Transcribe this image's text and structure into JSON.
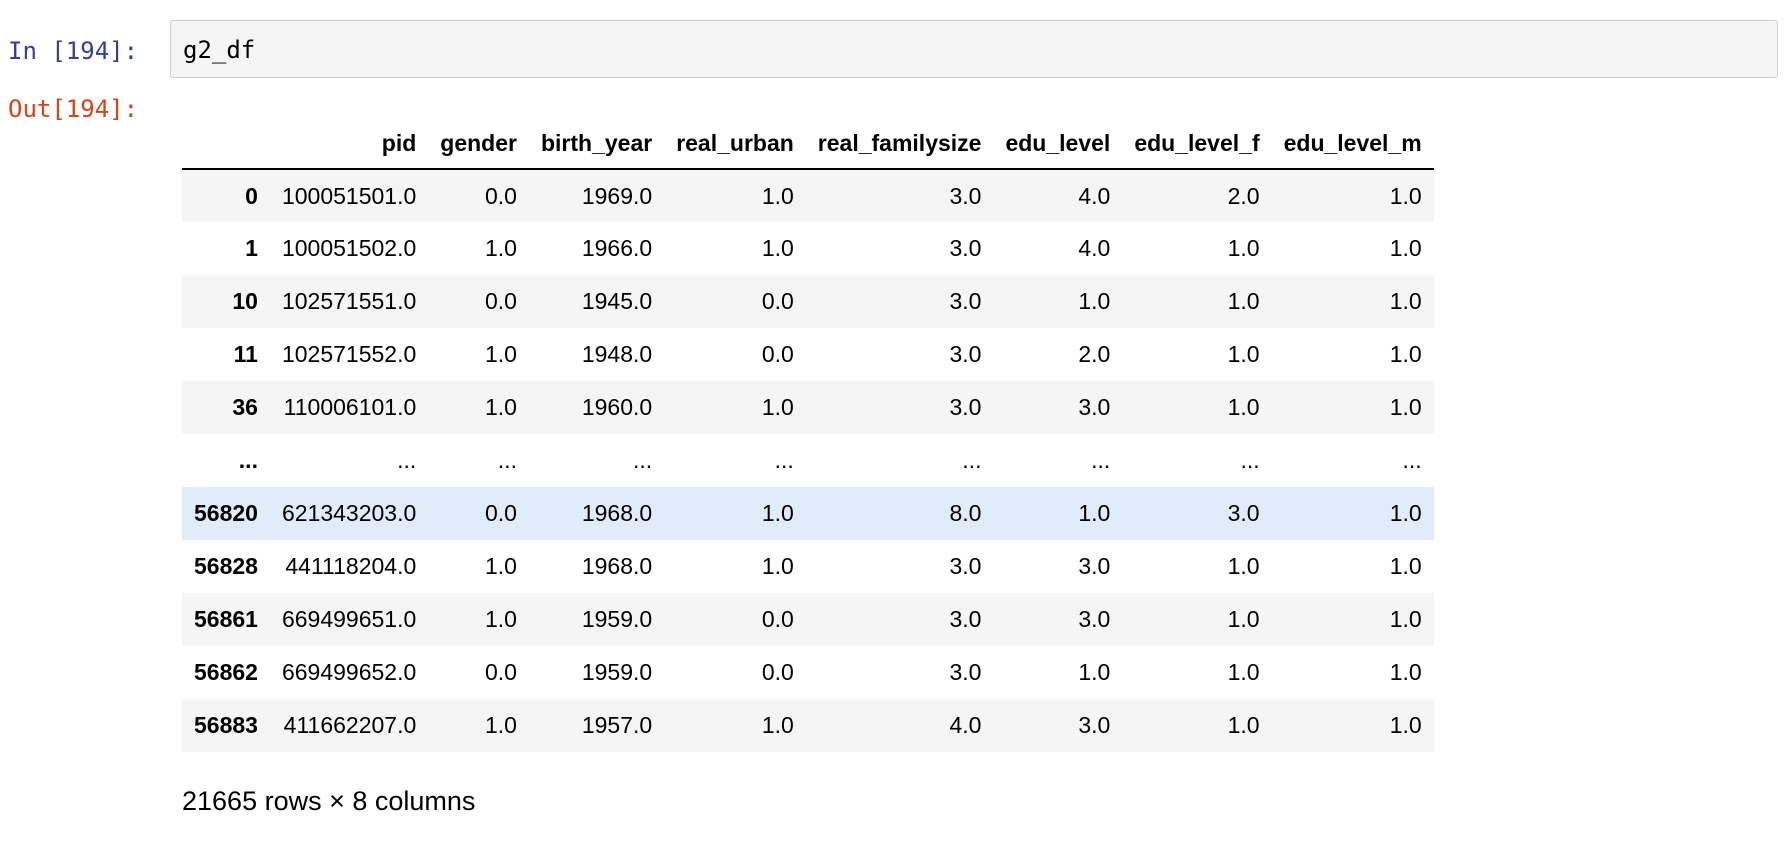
{
  "cell": {
    "in_prompt": "In [194]:",
    "code": "g2_df",
    "out_prompt": "Out[194]:"
  },
  "table": {
    "columns": [
      "",
      "pid",
      "gender",
      "birth_year",
      "real_urban",
      "real_familysize",
      "edu_level",
      "edu_level_f",
      "edu_level_m"
    ],
    "rows": [
      [
        "0",
        "100051501.0",
        "0.0",
        "1969.0",
        "1.0",
        "3.0",
        "4.0",
        "2.0",
        "1.0"
      ],
      [
        "1",
        "100051502.0",
        "1.0",
        "1966.0",
        "1.0",
        "3.0",
        "4.0",
        "1.0",
        "1.0"
      ],
      [
        "10",
        "102571551.0",
        "0.0",
        "1945.0",
        "0.0",
        "3.0",
        "1.0",
        "1.0",
        "1.0"
      ],
      [
        "11",
        "102571552.0",
        "1.0",
        "1948.0",
        "0.0",
        "3.0",
        "2.0",
        "1.0",
        "1.0"
      ],
      [
        "36",
        "110006101.0",
        "1.0",
        "1960.0",
        "1.0",
        "3.0",
        "3.0",
        "1.0",
        "1.0"
      ],
      [
        "...",
        "...",
        "...",
        "...",
        "...",
        "...",
        "...",
        "...",
        "..."
      ],
      [
        "56820",
        "621343203.0",
        "0.0",
        "1968.0",
        "1.0",
        "8.0",
        "1.0",
        "3.0",
        "1.0"
      ],
      [
        "56828",
        "441118204.0",
        "1.0",
        "1968.0",
        "1.0",
        "3.0",
        "3.0",
        "1.0",
        "1.0"
      ],
      [
        "56861",
        "669499651.0",
        "1.0",
        "1959.0",
        "0.0",
        "3.0",
        "3.0",
        "1.0",
        "1.0"
      ],
      [
        "56862",
        "669499652.0",
        "0.0",
        "1959.0",
        "0.0",
        "3.0",
        "1.0",
        "1.0",
        "1.0"
      ],
      [
        "56883",
        "411662207.0",
        "1.0",
        "1957.0",
        "1.0",
        "4.0",
        "3.0",
        "1.0",
        "1.0"
      ]
    ],
    "highlighted_row_index": 6,
    "shape_text": "21665 rows × 8 columns"
  },
  "colors": {
    "in_prompt": "#303f9f",
    "out_prompt": "#d84315",
    "input_background": "#f5f5f5",
    "striped_row": "#f5f5f5",
    "hover_row": "#e1ecfb"
  }
}
